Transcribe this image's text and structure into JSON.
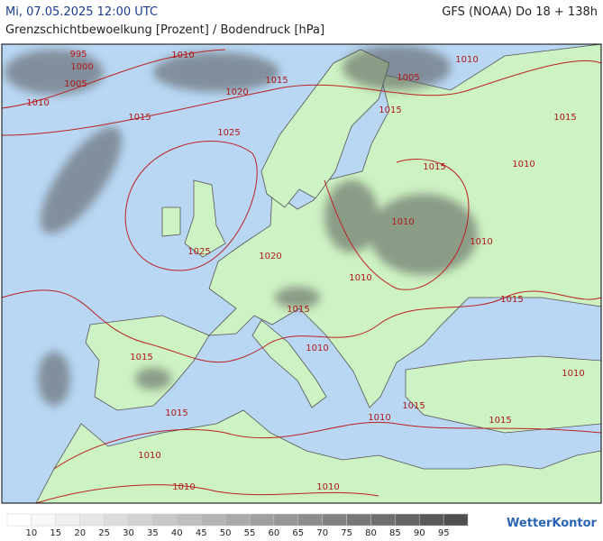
{
  "header": {
    "date": "Mi, 07.05.2025 12:00 UTC",
    "model": "GFS (NOAA) Do 18 + 138h",
    "title": "Grenzschichtbewoelkung [Prozent] / Bodendruck [hPa]"
  },
  "map": {
    "isobar_labels": [
      995,
      1000,
      1005,
      1010,
      1010,
      1015,
      1020,
      1015,
      1025,
      1005,
      1015,
      1010,
      1015,
      1015,
      1010,
      1010,
      1010,
      1025,
      1020,
      1010,
      1015,
      1015,
      1010,
      1015,
      1015,
      1010,
      1010,
      1015,
      1015,
      1010,
      1010,
      1010
    ]
  },
  "legend": {
    "colors": [
      "#ffffff",
      "#f8f8f8",
      "#f0f0f0",
      "#e6e6e6",
      "#dcdcdc",
      "#d2d2d2",
      "#c8c8c8",
      "#bebebe",
      "#b4b4b4",
      "#aaaaaa",
      "#a0a0a0",
      "#969696",
      "#8c8c8c",
      "#828282",
      "#787878",
      "#6e6e6e",
      "#646464",
      "#5a5a5a",
      "#505050"
    ],
    "labels": [
      10,
      15,
      20,
      25,
      30,
      35,
      40,
      45,
      50,
      55,
      60,
      65,
      70,
      75,
      80,
      85,
      90,
      95
    ]
  },
  "logo": "WetterKontor"
}
